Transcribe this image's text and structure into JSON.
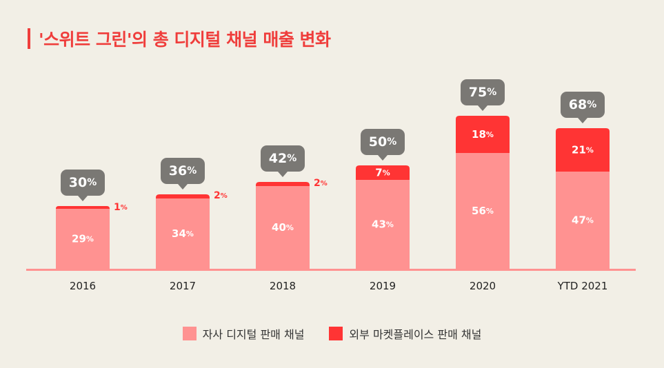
{
  "title": "'스위트 그린'의 총 디지털 채널 매출 변화",
  "colors": {
    "title": "#ef3d3b",
    "direct": "#ff9291",
    "marketplace": "#ff3434",
    "bubble": "#7a7874",
    "axis": "#ff9291"
  },
  "legend": [
    {
      "label": "자사 디지털 판매 채널",
      "color": "#ff9291"
    },
    {
      "label": "외부 마켓플레이스 판매 채널",
      "color": "#ff3434"
    }
  ],
  "chart_data": {
    "type": "bar",
    "stacked": true,
    "unit": "%",
    "categories": [
      "2016",
      "2017",
      "2018",
      "2019",
      "2020",
      "YTD 2021"
    ],
    "series": [
      {
        "name": "자사 디지털 판매 채널",
        "values": [
          29,
          34,
          40,
          43,
          56,
          47
        ]
      },
      {
        "name": "외부 마켓플레이스 판매 채널",
        "values": [
          1,
          2,
          2,
          7,
          18,
          21
        ]
      }
    ],
    "totals": [
      30,
      36,
      42,
      50,
      75,
      68
    ],
    "ylim": [
      0,
      80
    ],
    "grid": false,
    "legend_position": "bottom"
  }
}
